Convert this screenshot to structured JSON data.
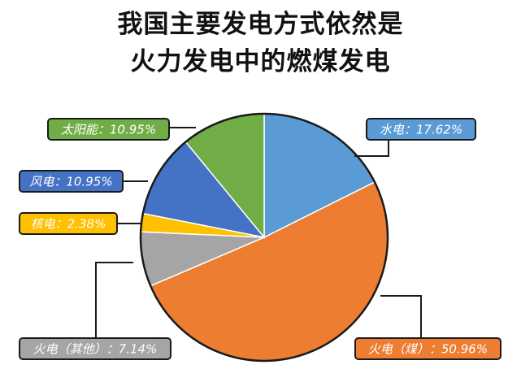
{
  "title_lines": [
    "我国主要发电方式依然是",
    "火力发电中的燃煤发电"
  ],
  "chart_data": {
    "type": "pie",
    "title": "我国主要发电方式依然是火力发电中的燃煤发电",
    "start_angle_deg": 0,
    "direction": "clockwise",
    "slices": [
      {
        "name": "水电",
        "value": 17.62,
        "label": "水电：17.62%",
        "color": "#5B9BD5",
        "label_bg": "#5B9BD5"
      },
      {
        "name": "火电（煤）",
        "value": 50.96,
        "label": "火电（煤）：50.96%",
        "color": "#ED7D31",
        "label_bg": "#ED7D31"
      },
      {
        "name": "火电（其他）",
        "value": 7.14,
        "label": "火电（其他）：7.14%",
        "color": "#A5A5A5",
        "label_bg": "#A5A5A5"
      },
      {
        "name": "核电",
        "value": 2.38,
        "label": "核电：2.38%",
        "color": "#FFC000",
        "label_bg": "#FFC000"
      },
      {
        "name": "风电",
        "value": 10.95,
        "label": "风电：10.95%",
        "color": "#4472C4",
        "label_bg": "#4472C4"
      },
      {
        "name": "太阳能",
        "value": 10.95,
        "label": "太阳能：10.95%",
        "color": "#70AD47",
        "label_bg": "#70AD47"
      }
    ]
  }
}
